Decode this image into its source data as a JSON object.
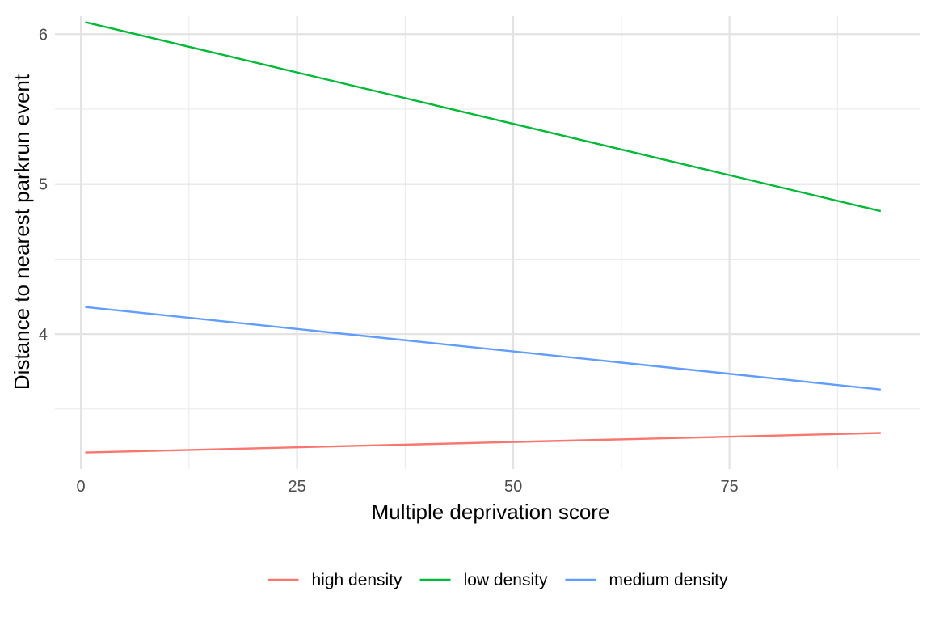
{
  "chart_data": {
    "type": "line",
    "xlabel": "Multiple deprivation score",
    "ylabel": "Distance to nearest parkrun event",
    "xlim": [
      -3,
      97
    ],
    "ylim": [
      3.1,
      6.12
    ],
    "x_ticks": [
      {
        "value": 0,
        "label": "0"
      },
      {
        "value": 25,
        "label": "25"
      },
      {
        "value": 50,
        "label": "50"
      },
      {
        "value": 75,
        "label": "75"
      }
    ],
    "y_ticks": [
      {
        "value": 4,
        "label": "4"
      },
      {
        "value": 5,
        "label": "5"
      },
      {
        "value": 6,
        "label": "6"
      }
    ],
    "x_minor_ticks": [
      12.5,
      37.5,
      62.5,
      87.5
    ],
    "y_minor_ticks": [
      3.5,
      4.5,
      5.5
    ],
    "grid": true,
    "legend_position": "bottom",
    "series": [
      {
        "name": "high density",
        "color": "#F8766D",
        "x": [
          0.5,
          92.5
        ],
        "y": [
          3.21,
          3.34
        ]
      },
      {
        "name": "low density",
        "color": "#00BA38",
        "x": [
          0.5,
          92.5
        ],
        "y": [
          6.08,
          4.82
        ]
      },
      {
        "name": "medium density",
        "color": "#619CFF",
        "x": [
          0.5,
          92.5
        ],
        "y": [
          4.18,
          3.63
        ]
      }
    ]
  }
}
